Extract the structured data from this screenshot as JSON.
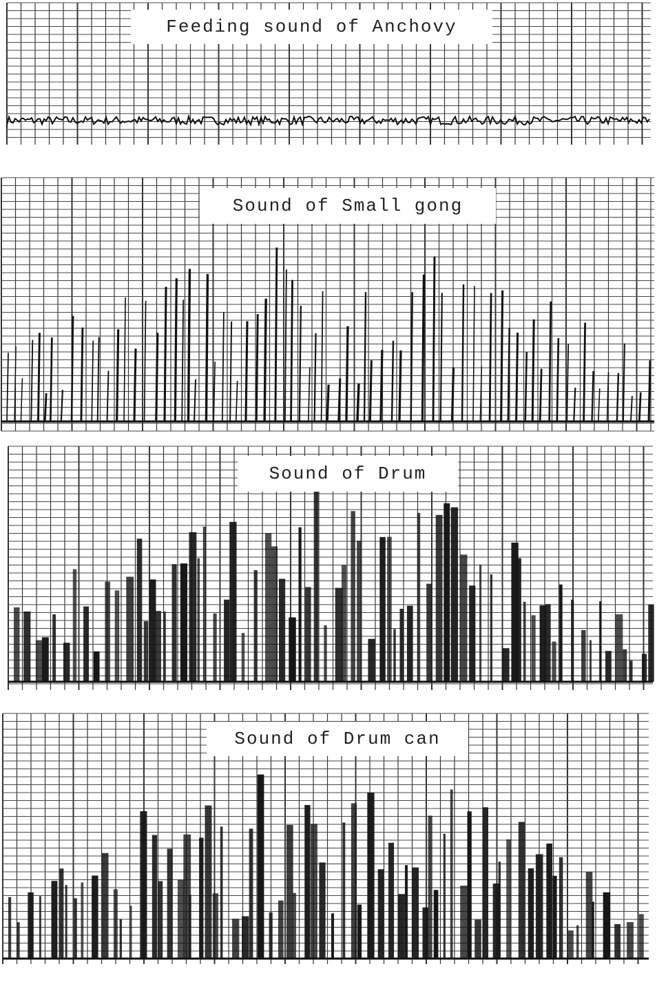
{
  "panels": [
    {
      "title": "Feeding sound of Anchovy"
    },
    {
      "title": "Sound of Small gong"
    },
    {
      "title": "Sound of Drum"
    },
    {
      "title": "Sound of Drum can"
    }
  ]
}
